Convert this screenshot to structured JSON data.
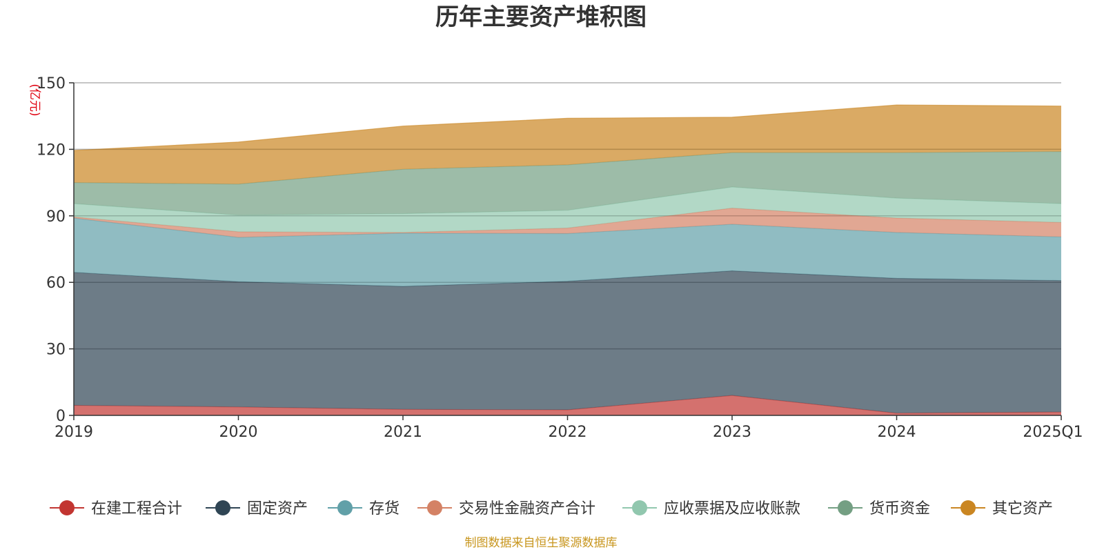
{
  "chart_data": {
    "type": "area",
    "stacked": true,
    "title": "历年主要资产堆积图",
    "ylabel": "(亿元)",
    "xlabel": "",
    "categories": [
      "2019",
      "2020",
      "2021",
      "2022",
      "2023",
      "2024",
      "2025Q1"
    ],
    "ylim": [
      0,
      150
    ],
    "yticks": [
      0,
      30,
      60,
      90,
      120,
      150
    ],
    "grid": true,
    "legend_position": "bottom",
    "source": "制图数据来自恒生聚源数据库",
    "series": [
      {
        "name": "在建工程合计",
        "color": "#c23531",
        "values": [
          4.5,
          3.8,
          2.7,
          2.5,
          9.0,
          1.0,
          1.5
        ]
      },
      {
        "name": "固定资产",
        "color": "#2f4554",
        "values": [
          60.0,
          56.5,
          55.5,
          58.0,
          56.2,
          60.8,
          59.3
        ]
      },
      {
        "name": "存货",
        "color": "#61a0a8",
        "values": [
          24.5,
          20.0,
          24.0,
          21.5,
          21.0,
          20.7,
          19.7
        ]
      },
      {
        "name": "交易性金融资产合计",
        "color": "#d48265",
        "values": [
          0.5,
          2.5,
          0.3,
          2.5,
          7.3,
          6.5,
          6.5
        ]
      },
      {
        "name": "应收票据及应收账款",
        "color": "#91c7ae",
        "values": [
          6.0,
          7.5,
          8.5,
          8.0,
          9.5,
          9.0,
          8.5
        ]
      },
      {
        "name": "货币资金",
        "color": "#749f83",
        "values": [
          9.5,
          14.0,
          20.0,
          20.5,
          15.5,
          20.5,
          23.5
        ]
      },
      {
        "name": "其它资产",
        "color": "#ca8622",
        "values": [
          14.5,
          19.0,
          19.5,
          21.0,
          16.0,
          21.5,
          20.5
        ]
      }
    ]
  }
}
